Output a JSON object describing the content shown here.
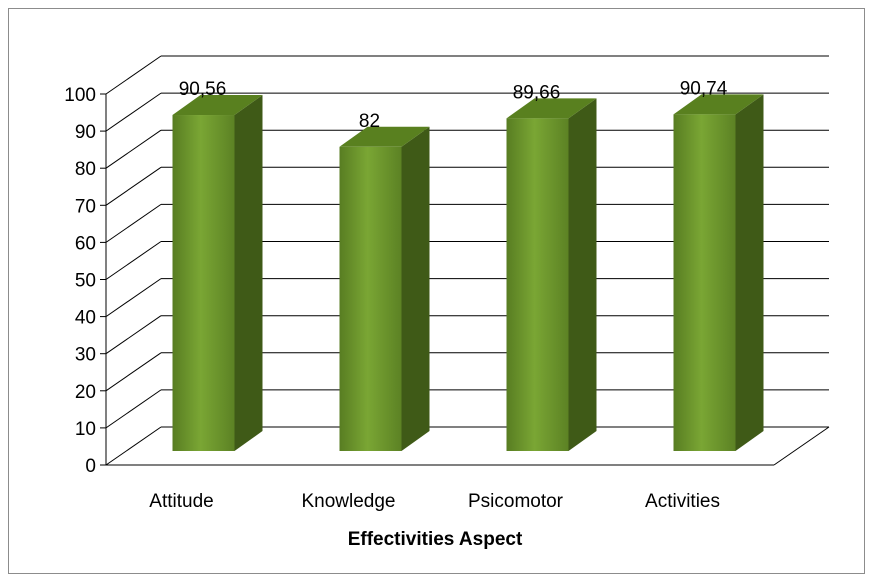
{
  "chart_data": {
    "type": "bar",
    "title": "",
    "xlabel": "Effectivities Aspect",
    "ylabel": "",
    "categories": [
      "Attitude",
      "Knowledge",
      "Psicomotor",
      "Activities"
    ],
    "values": [
      90.56,
      82,
      89.66,
      90.74
    ],
    "data_labels": [
      "90,56",
      "82",
      "89,66",
      "90,74"
    ],
    "ylim": [
      0,
      100
    ],
    "yticks": [
      0,
      10,
      20,
      30,
      40,
      50,
      60,
      70,
      80,
      90,
      100
    ],
    "grid": true,
    "legend": "none",
    "style": "3d-column",
    "colors": {
      "bar_front": "#6f9a2c",
      "bar_side": "#3f5a17",
      "bar_top": "#59801f",
      "grid": "#000000"
    }
  }
}
